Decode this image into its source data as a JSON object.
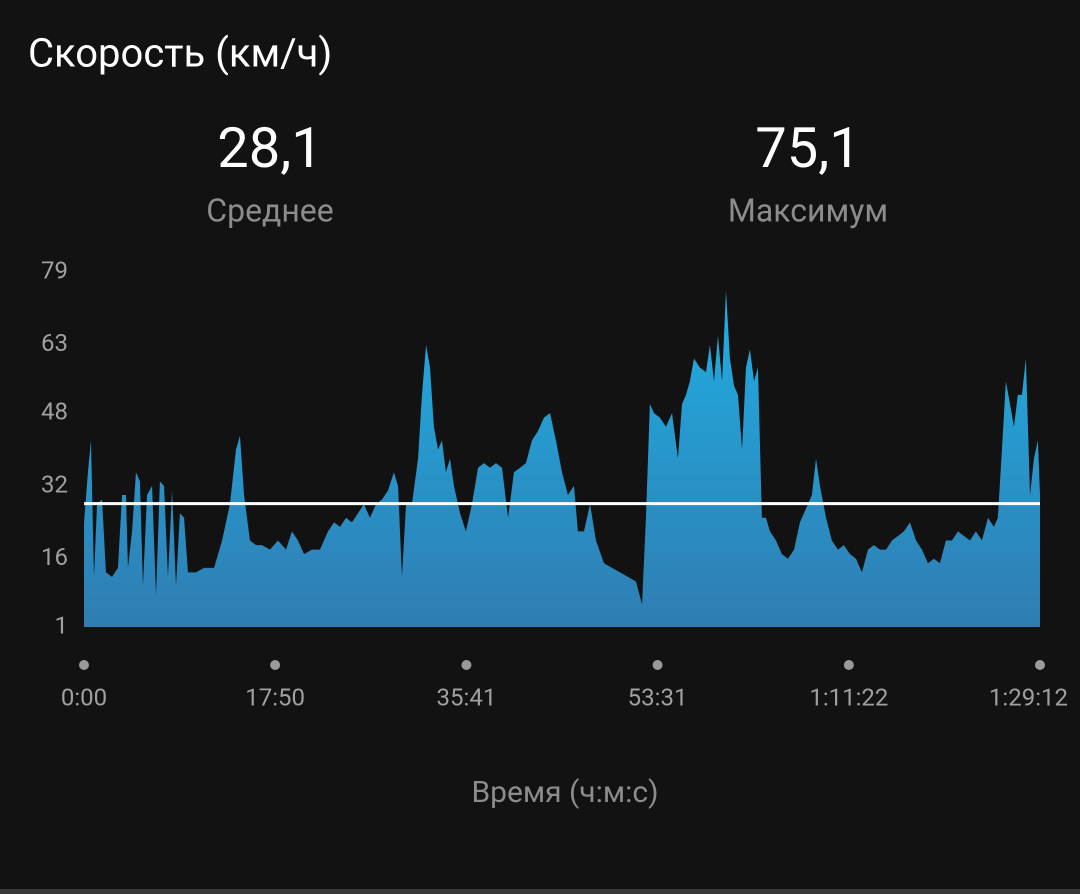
{
  "chart_data": {
    "type": "area",
    "title": "Скорость (км/ч)",
    "average": {
      "value": 28.1,
      "label": "28,1",
      "name": "Среднее"
    },
    "maximum": {
      "value": 75.1,
      "label": "75,1",
      "name": "Максимум"
    },
    "xlabel": "Время (ч:м:с)",
    "color_top": "#20aee2",
    "color_bottom": "#2f7db2",
    "average_color": "#ffffff",
    "x": [
      0,
      22,
      39,
      56,
      73,
      101,
      123,
      157,
      190,
      213,
      235,
      246,
      269,
      291,
      313,
      330,
      353,
      381,
      403,
      425,
      448,
      470,
      493,
      515,
      537,
      560,
      582,
      627,
      672,
      728,
      773,
      817,
      851,
      873,
      896,
      929,
      963,
      996,
      1041,
      1086,
      1131,
      1164,
      1198,
      1232,
      1276,
      1321,
      1366,
      1400,
      1433,
      1467,
      1500,
      1534,
      1567,
      1601,
      1635,
      1668,
      1702,
      1735,
      1758,
      1780,
      1803,
      1836,
      1870,
      1892,
      1915,
      1937,
      1959,
      1982,
      2004,
      2026,
      2049,
      2071,
      2105,
      2138,
      2172,
      2206,
      2239,
      2273,
      2306,
      2340,
      2374,
      2407,
      2441,
      2474,
      2508,
      2541,
      2575,
      2609,
      2642,
      2676,
      2709,
      2743,
      2765,
      2799,
      2833,
      2866,
      2911,
      2956,
      3001,
      3045,
      3090,
      3124,
      3146,
      3168,
      3191,
      3224,
      3258,
      3292,
      3325,
      3348,
      3370,
      3392,
      3415,
      3448,
      3482,
      3504,
      3527,
      3549,
      3572,
      3594,
      3616,
      3639,
      3661,
      3684,
      3706,
      3728,
      3751,
      3773,
      3795,
      3818,
      3840,
      3874,
      3907,
      3941,
      3975,
      4008,
      4042,
      4075,
      4098,
      4120,
      4154,
      4187,
      4221,
      4254,
      4288,
      4322,
      4355,
      4389,
      4422,
      4456,
      4490,
      4523,
      4557,
      4590,
      4624,
      4658,
      4691,
      4725,
      4758,
      4792,
      4825,
      4859,
      4893,
      4926,
      4960,
      4993,
      5027,
      5061,
      5094,
      5116,
      5139,
      5161,
      5184,
      5206,
      5228,
      5251,
      5273,
      5296,
      5318,
      5340,
      5352
    ],
    "values": [
      24,
      35,
      42,
      12,
      28,
      29,
      13,
      12,
      14,
      30,
      30,
      14,
      22,
      35,
      33,
      10,
      30,
      32,
      8,
      33,
      32,
      12,
      31,
      10,
      26,
      25,
      13,
      13,
      14,
      14,
      20,
      28,
      40,
      43,
      30,
      20,
      19,
      19,
      18,
      20,
      18,
      22,
      20,
      17,
      18,
      18,
      22,
      24,
      23,
      25,
      24,
      26,
      28,
      25,
      28,
      29,
      31,
      35,
      32,
      12,
      28,
      28,
      38,
      52,
      63,
      58,
      45,
      40,
      42,
      35,
      38,
      32,
      26,
      22,
      28,
      36,
      37,
      36,
      37,
      36,
      25,
      35,
      36,
      37,
      42,
      44,
      47,
      48,
      42,
      35,
      30,
      32,
      22,
      22,
      28,
      20,
      15,
      14,
      13,
      12,
      11,
      6,
      25,
      50,
      48,
      47,
      45,
      48,
      38,
      50,
      52,
      55,
      60,
      58,
      57,
      63,
      55,
      65,
      55,
      75,
      60,
      54,
      52,
      40,
      58,
      62,
      55,
      58,
      25,
      25,
      22,
      20,
      17,
      16,
      18,
      24,
      27,
      30,
      38,
      32,
      25,
      20,
      18,
      19,
      17,
      16,
      13,
      18,
      19,
      18,
      18,
      20,
      21,
      22,
      24,
      20,
      18,
      15,
      16,
      15,
      20,
      20,
      22,
      21,
      20,
      22,
      20,
      25,
      23,
      25,
      40,
      55,
      50,
      45,
      52,
      52,
      60,
      30,
      38,
      42,
      30
    ],
    "xlim": [
      0,
      5352
    ],
    "xticks": [
      {
        "value": 0,
        "label": "0:00"
      },
      {
        "value": 1070,
        "label": "17:50"
      },
      {
        "value": 2141,
        "label": "35:41"
      },
      {
        "value": 3211,
        "label": "53:31"
      },
      {
        "value": 4282,
        "label": "1:11:22"
      },
      {
        "value": 5352,
        "label": "1:29:12"
      }
    ],
    "ylim": [
      1,
      79
    ],
    "yticks": [
      79,
      63,
      48,
      32,
      16,
      1
    ]
  }
}
